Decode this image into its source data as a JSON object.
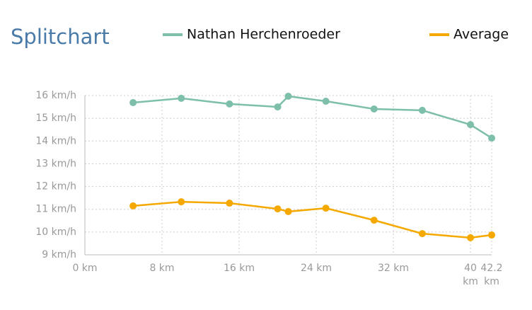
{
  "chart_data": {
    "type": "line",
    "title": "Splitchart",
    "x": [
      5,
      10,
      15,
      20,
      21.1,
      25,
      30,
      35,
      40,
      42.2
    ],
    "series": [
      {
        "name": "Nathan Herchenroeder",
        "color": "#7dbfaa",
        "values": [
          15.69,
          15.88,
          15.63,
          15.5,
          15.97,
          15.75,
          15.41,
          15.35,
          14.72,
          14.13
        ]
      },
      {
        "name": "Average",
        "color": "#f5a800",
        "values": [
          11.15,
          11.33,
          11.27,
          11.02,
          10.9,
          11.05,
          10.52,
          9.93,
          9.75,
          9.87
        ]
      }
    ],
    "xlim": [
      0,
      42.2
    ],
    "xticks": [
      {
        "value": 0,
        "label": "0 km"
      },
      {
        "value": 8,
        "label": "8 km"
      },
      {
        "value": 16,
        "label": "16 km"
      },
      {
        "value": 24,
        "label": "24 km"
      },
      {
        "value": 32,
        "label": "32 km"
      },
      {
        "value": 40,
        "label": "40 km"
      },
      {
        "value": 42.2,
        "label": "42.2 km"
      }
    ],
    "ylim": [
      9,
      16
    ],
    "yticks": [
      {
        "value": 9,
        "label": "9 km/h"
      },
      {
        "value": 10,
        "label": "10 km/h"
      },
      {
        "value": 11,
        "label": "11 km/h"
      },
      {
        "value": 12,
        "label": "12 km/h"
      },
      {
        "value": 13,
        "label": "13 km/h"
      },
      {
        "value": 14,
        "label": "14 km/h"
      },
      {
        "value": 15,
        "label": "15 km/h"
      },
      {
        "value": 16,
        "label": "16 km/h"
      }
    ],
    "grid": true
  }
}
